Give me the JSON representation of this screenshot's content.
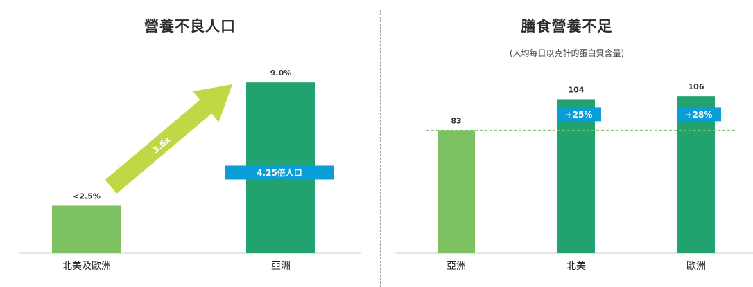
{
  "colors": {
    "light_green": "#7dc163",
    "dark_green": "#21a26f",
    "lime": "#c0d846",
    "blue": "#0a9ed9",
    "dashed_line": "#7dc163",
    "axis": "#cccccc"
  },
  "chart_data": [
    {
      "type": "bar",
      "title": "營養不良人口",
      "categories": [
        "北美及歐洲",
        "亞洲"
      ],
      "values": [
        2.5,
        9.0
      ],
      "value_labels": [
        "<2.5%",
        "9.0%"
      ],
      "ylim": [
        0,
        9.7
      ],
      "arrow_label": "3.6x",
      "tag_label": "4.25倍人口",
      "tag_value": 4.25,
      "grid": false
    },
    {
      "type": "bar",
      "title": "膳食營養不足",
      "subtitle": "(人均每日以克計的蛋白質含量)",
      "categories": [
        "亞洲",
        "北美",
        "歐洲"
      ],
      "values": [
        83,
        104,
        106
      ],
      "value_labels": [
        "83",
        "104",
        "106"
      ],
      "ylim": [
        0,
        150
      ],
      "reference_line": 83,
      "tag_labels": [
        "",
        "+25%",
        "+28%"
      ],
      "grid": false
    }
  ]
}
